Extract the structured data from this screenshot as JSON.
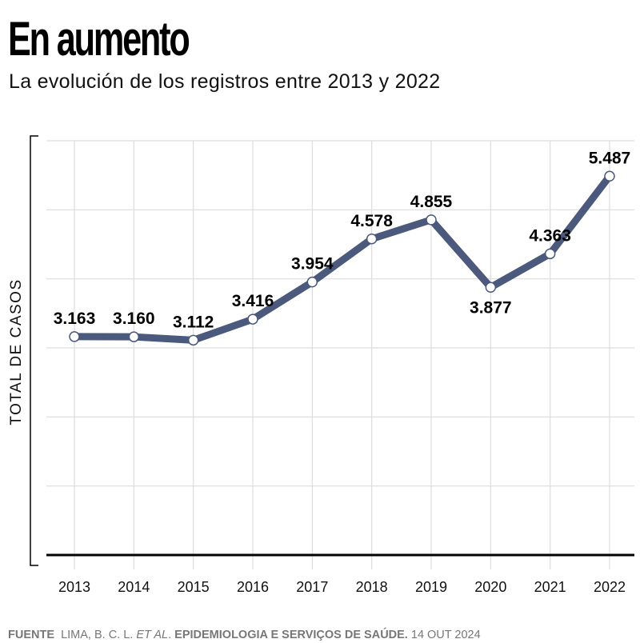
{
  "title": "En aumento",
  "subtitle": "La evolución de los registros entre 2013 y 2022",
  "footer": {
    "label": "FUENTE",
    "authors": "LIMA, B. C. L.",
    "etal": "ET AL",
    "publication": "EPIDEMIOLOGIA E SERVIÇOS DE SAÚDE.",
    "date": "14 OUT 2024"
  },
  "colors": {
    "line": "#4b5a7c",
    "grid": "#dddddd",
    "axis": "#000000"
  },
  "chart_data": {
    "type": "line",
    "title": "En aumento",
    "xlabel": "",
    "ylabel": "TOTAL DE CASOS",
    "ylim": [
      0,
      6000
    ],
    "grid": true,
    "x": [
      "2013",
      "2014",
      "2015",
      "2016",
      "2017",
      "2018",
      "2019",
      "2020",
      "2021",
      "2022"
    ],
    "series": [
      {
        "name": "Total de casos",
        "values": [
          3163,
          3160,
          3112,
          3416,
          3954,
          4578,
          4855,
          3877,
          4363,
          5487
        ]
      }
    ],
    "data_labels": [
      "3.163",
      "3.160",
      "3.112",
      "3.416",
      "3.954",
      "4.578",
      "4.855",
      "3.877",
      "4.363",
      "5.487"
    ]
  }
}
